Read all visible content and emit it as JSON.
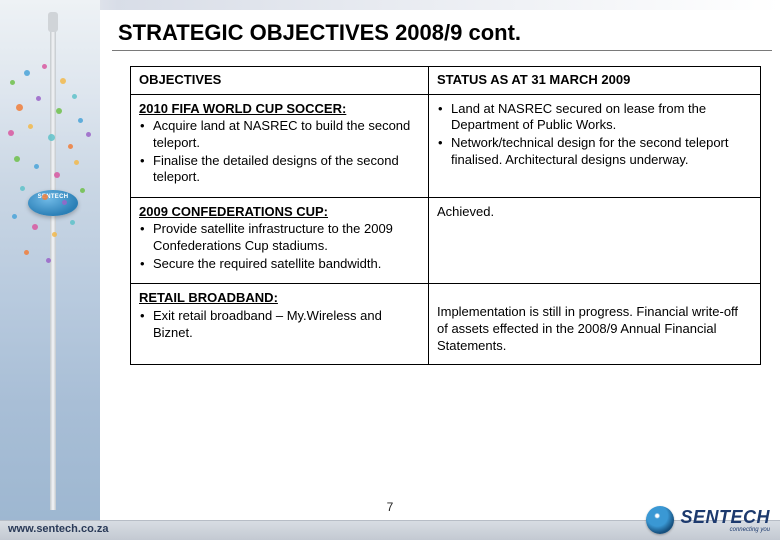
{
  "title": "STRATEGIC OBJECTIVES 2008/9 cont.",
  "page_number": "7",
  "footer_url": "www.sentech.co.za",
  "brand": {
    "name": "SENTECH",
    "tagline": "connecting you",
    "pod_label": "SENTECH"
  },
  "table": {
    "headers": {
      "col1": "OBJECTIVES",
      "col2": "STATUS AS AT 31 MARCH 2009"
    },
    "rows": [
      {
        "objective_heading": "2010 FIFA WORLD CUP SOCCER:",
        "objective_bullets": [
          "Acquire land at NASREC to build the second teleport.",
          "Finalise the detailed designs of the second teleport."
        ],
        "status_text": "",
        "status_bullets": [
          "Land at NASREC secured on lease from the Department of Public Works.",
          "Network/technical design for the second teleport finalised. Architectural designs underway."
        ]
      },
      {
        "objective_heading": "2009 CONFEDERATIONS CUP:",
        "objective_bullets": [
          "Provide satellite infrastructure to the 2009 Confederations Cup stadiums.",
          "Secure the required satellite bandwidth."
        ],
        "status_text": "Achieved.",
        "status_bullets": []
      },
      {
        "objective_heading": "RETAIL BROADBAND:",
        "objective_bullets": [
          "Exit retail broadband – My.Wireless and Biznet."
        ],
        "status_text": "Implementation is still in progress. Financial write-off of assets effected in the 2008/9 Annual Financial Statements.",
        "status_bullets": []
      }
    ]
  },
  "colors": {
    "title_rule": "#7a7a7a",
    "table_border": "#000000",
    "text": "#000000",
    "footer_bg_top": "#d8dde3",
    "footer_bg_bottom": "#c3c9d2",
    "brand_text": "#1d3a6e"
  },
  "swarm_dots": [
    {
      "l": 8,
      "t": 20,
      "s": 5,
      "c": "#6fbf4a"
    },
    {
      "l": 22,
      "t": 10,
      "s": 6,
      "c": "#4aa3d8"
    },
    {
      "l": 40,
      "t": 4,
      "s": 5,
      "c": "#d858a0"
    },
    {
      "l": 58,
      "t": 18,
      "s": 6,
      "c": "#f2b84b"
    },
    {
      "l": 70,
      "t": 34,
      "s": 5,
      "c": "#5fc2c9"
    },
    {
      "l": 14,
      "t": 44,
      "s": 7,
      "c": "#f07e3a"
    },
    {
      "l": 34,
      "t": 36,
      "s": 5,
      "c": "#9a64c8"
    },
    {
      "l": 54,
      "t": 48,
      "s": 6,
      "c": "#6fbf4a"
    },
    {
      "l": 76,
      "t": 58,
      "s": 5,
      "c": "#4aa3d8"
    },
    {
      "l": 6,
      "t": 70,
      "s": 6,
      "c": "#d858a0"
    },
    {
      "l": 26,
      "t": 64,
      "s": 5,
      "c": "#f2b84b"
    },
    {
      "l": 46,
      "t": 74,
      "s": 7,
      "c": "#5fc2c9"
    },
    {
      "l": 66,
      "t": 84,
      "s": 5,
      "c": "#f07e3a"
    },
    {
      "l": 84,
      "t": 72,
      "s": 5,
      "c": "#9a64c8"
    },
    {
      "l": 12,
      "t": 96,
      "s": 6,
      "c": "#6fbf4a"
    },
    {
      "l": 32,
      "t": 104,
      "s": 5,
      "c": "#4aa3d8"
    },
    {
      "l": 52,
      "t": 112,
      "s": 6,
      "c": "#d858a0"
    },
    {
      "l": 72,
      "t": 100,
      "s": 5,
      "c": "#f2b84b"
    },
    {
      "l": 18,
      "t": 126,
      "s": 5,
      "c": "#5fc2c9"
    },
    {
      "l": 40,
      "t": 134,
      "s": 6,
      "c": "#f07e3a"
    },
    {
      "l": 60,
      "t": 140,
      "s": 5,
      "c": "#9a64c8"
    },
    {
      "l": 78,
      "t": 128,
      "s": 5,
      "c": "#6fbf4a"
    },
    {
      "l": 10,
      "t": 154,
      "s": 5,
      "c": "#4aa3d8"
    },
    {
      "l": 30,
      "t": 164,
      "s": 6,
      "c": "#d858a0"
    },
    {
      "l": 50,
      "t": 172,
      "s": 5,
      "c": "#f2b84b"
    },
    {
      "l": 68,
      "t": 160,
      "s": 5,
      "c": "#5fc2c9"
    },
    {
      "l": 22,
      "t": 190,
      "s": 5,
      "c": "#f07e3a"
    },
    {
      "l": 44,
      "t": 198,
      "s": 5,
      "c": "#9a64c8"
    }
  ]
}
